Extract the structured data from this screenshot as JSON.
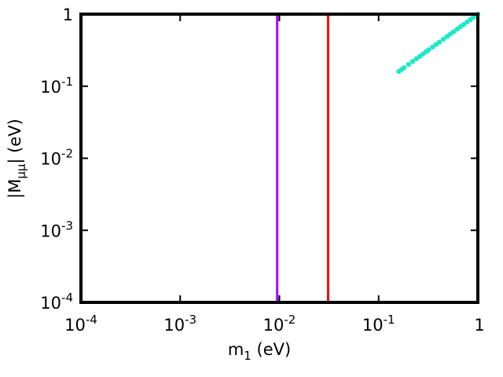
{
  "chart_data": {
    "type": "scatter",
    "title": "",
    "xlabel": {
      "main": "m",
      "sub": "1",
      "unit": " (eV)"
    },
    "ylabel": {
      "open": "|M",
      "sub": "μμ",
      "close": "| (eV)"
    },
    "x_scale": "log",
    "y_scale": "log",
    "xlim": [
      0.0001,
      1
    ],
    "ylim": [
      0.0001,
      1
    ],
    "grid": false,
    "x_ticks": [
      {
        "value": 0.0001,
        "base": "10",
        "exp": "-4"
      },
      {
        "value": 0.001,
        "base": "10",
        "exp": "-3"
      },
      {
        "value": 0.01,
        "base": "10",
        "exp": "-2"
      },
      {
        "value": 0.1,
        "base": "10",
        "exp": "-1"
      },
      {
        "value": 1,
        "base": "1",
        "exp": ""
      }
    ],
    "y_ticks": [
      {
        "value": 0.0001,
        "base": "10",
        "exp": "-4"
      },
      {
        "value": 0.001,
        "base": "10",
        "exp": "-3"
      },
      {
        "value": 0.01,
        "base": "10",
        "exp": "-2"
      },
      {
        "value": 0.1,
        "base": "10",
        "exp": "-1"
      },
      {
        "value": 1,
        "base": "1",
        "exp": ""
      }
    ],
    "vertical_lines": [
      {
        "x": 0.0095,
        "color": "#aa00ff"
      },
      {
        "x": 0.031,
        "color": "#ff0000"
      }
    ],
    "series": [
      {
        "color": "#1de9c8",
        "points": [
          [
            0.16,
            0.16
          ],
          [
            0.17,
            0.17
          ],
          [
            0.18,
            0.18
          ],
          [
            0.2,
            0.2
          ],
          [
            0.22,
            0.22
          ],
          [
            0.24,
            0.24
          ],
          [
            0.26,
            0.26
          ],
          [
            0.28,
            0.28
          ],
          [
            0.3,
            0.3
          ],
          [
            0.32,
            0.32
          ],
          [
            0.35,
            0.35
          ],
          [
            0.38,
            0.38
          ],
          [
            0.41,
            0.41
          ],
          [
            0.45,
            0.45
          ],
          [
            0.49,
            0.49
          ],
          [
            0.53,
            0.53
          ],
          [
            0.57,
            0.57
          ],
          [
            0.62,
            0.62
          ],
          [
            0.67,
            0.67
          ],
          [
            0.72,
            0.72
          ],
          [
            0.78,
            0.78
          ],
          [
            0.84,
            0.84
          ],
          [
            0.9,
            0.9
          ],
          [
            0.95,
            0.95
          ],
          [
            1.0,
            1.0
          ]
        ]
      }
    ]
  }
}
